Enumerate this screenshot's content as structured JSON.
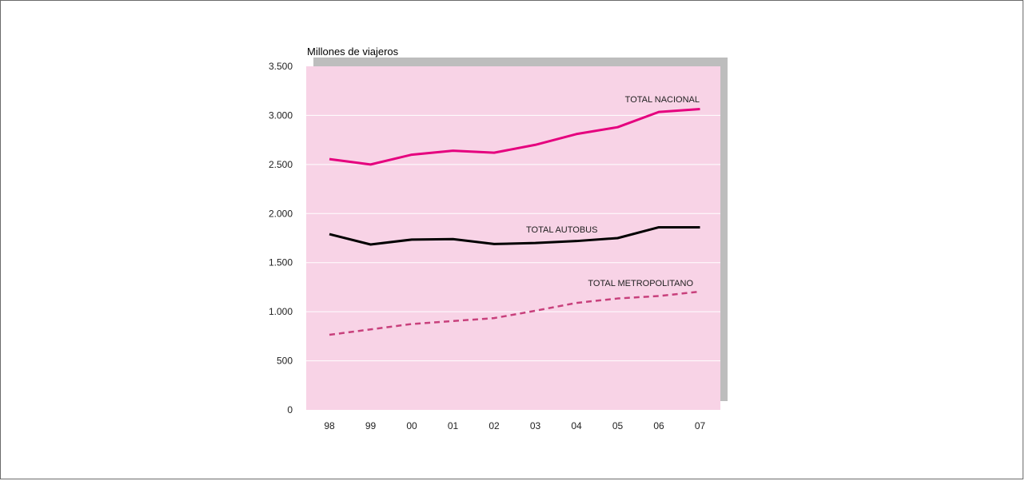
{
  "chart_data": {
    "type": "line",
    "ylabel": "Millones de viajeros",
    "categories": [
      "98",
      "99",
      "00",
      "01",
      "02",
      "03",
      "04",
      "05",
      "06",
      "07"
    ],
    "ylim": [
      0,
      3500
    ],
    "yticks": [
      0,
      500,
      1000,
      1500,
      2000,
      2500,
      3000,
      3500
    ],
    "ytick_labels": [
      "0",
      "500",
      "1.000",
      "1.500",
      "2.000",
      "2.500",
      "3.000",
      "3.500"
    ],
    "grid": true,
    "legend": "inline labels on lines",
    "background_color": "#f8d3e6",
    "shadow_color": "#bdbdbd",
    "series": [
      {
        "name": "TOTAL NACIONAL",
        "values": [
          2555,
          2500,
          2600,
          2640,
          2620,
          2700,
          2810,
          2880,
          3035,
          3065
        ],
        "color": "#e5007e",
        "style": "solid"
      },
      {
        "name": "TOTAL AUTOBUS",
        "values": [
          1790,
          1685,
          1735,
          1740,
          1690,
          1700,
          1720,
          1750,
          1860,
          1860
        ],
        "color": "#000000",
        "style": "solid"
      },
      {
        "name": "TOTAL METROPOLITANO",
        "values": [
          765,
          820,
          875,
          905,
          935,
          1010,
          1090,
          1135,
          1160,
          1205
        ],
        "color": "#c8407c",
        "style": "dashed"
      }
    ]
  }
}
